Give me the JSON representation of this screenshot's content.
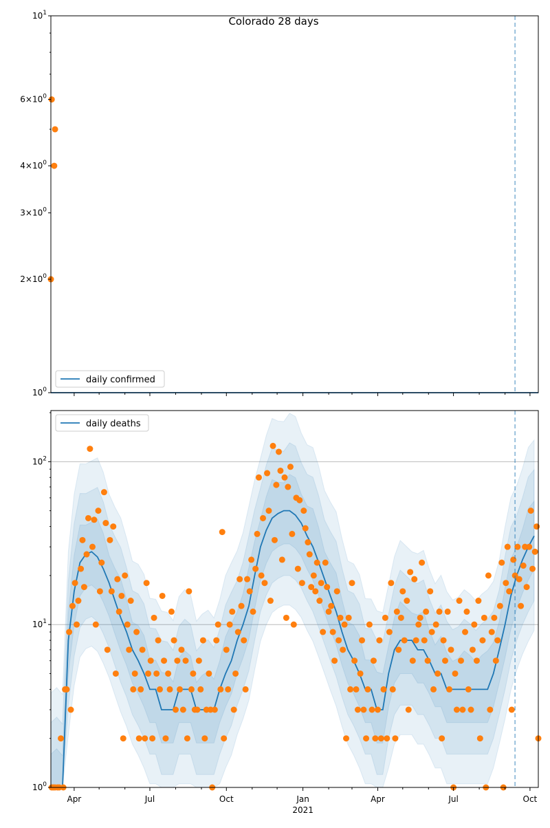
{
  "chart_data": [
    {
      "type": "scatter",
      "panel": "top",
      "title": "Colorado 28 days",
      "yscale": "log",
      "ylim": [
        1,
        10
      ],
      "x_start": "2020-03-04",
      "x_end": "2021-10-11",
      "legend": {
        "label": "daily confirmed",
        "placement": "bottom-left"
      },
      "line_value": 1,
      "observed": [
        {
          "date": "2020-03-04",
          "value": 2
        },
        {
          "date": "2020-03-05",
          "value": 6
        },
        {
          "date": "2020-03-08",
          "value": 4
        },
        {
          "date": "2020-03-09",
          "value": 5
        }
      ],
      "yticks": [
        {
          "value": 10,
          "mant": "",
          "exp": "1"
        },
        {
          "value": 6,
          "mant": "6",
          "exp": "0"
        },
        {
          "value": 4,
          "mant": "4",
          "exp": "0"
        },
        {
          "value": 3,
          "mant": "3",
          "exp": "0"
        },
        {
          "value": 2,
          "mant": "2",
          "exp": "0"
        },
        {
          "value": 1,
          "mant": "",
          "exp": "0"
        }
      ],
      "forecast_marker": "2021-09-13"
    },
    {
      "type": "line",
      "panel": "bottom",
      "yscale": "log",
      "ylim": [
        1,
        206
      ],
      "grid": true,
      "legend": {
        "label": "daily deaths",
        "placement": "top-left"
      },
      "x_start": "2020-03-04",
      "x_end": "2021-10-11",
      "median_interval_days": 7,
      "median": [
        1,
        1,
        1,
        8,
        16,
        24,
        27,
        28,
        26,
        22,
        18,
        14,
        11,
        9,
        7,
        6,
        5,
        4,
        4,
        3,
        3,
        3,
        4,
        4,
        4,
        3,
        3,
        3,
        3,
        4,
        5,
        6,
        8,
        10,
        13,
        20,
        30,
        38,
        45,
        48,
        50,
        50,
        47,
        42,
        35,
        30,
        24,
        19,
        15,
        12,
        9,
        7,
        6,
        5,
        4,
        4,
        3,
        3,
        5,
        7,
        8,
        8,
        8,
        7,
        7,
        6,
        5,
        5,
        4,
        4,
        4,
        4,
        4,
        4,
        4,
        4,
        5,
        7,
        10,
        15,
        20,
        25,
        30,
        35
      ],
      "band_factors": [
        1.6,
        2.5,
        3.8
      ],
      "observed_offsets_days": [
        1,
        3,
        5
      ],
      "observed_weekly": [
        [
          1,
          1,
          1
        ],
        [
          1,
          1,
          2
        ],
        [
          1,
          4,
          4
        ],
        [
          9,
          3,
          13
        ],
        [
          18,
          10,
          14
        ],
        [
          22,
          33,
          17
        ],
        [
          27,
          45,
          120
        ],
        [
          30,
          44,
          10
        ],
        [
          50,
          16,
          24
        ],
        [
          65,
          42,
          7
        ],
        [
          33,
          16,
          40
        ],
        [
          5,
          19,
          12
        ],
        [
          15,
          2,
          20
        ],
        [
          10,
          7,
          14
        ],
        [
          4,
          5,
          9
        ],
        [
          2,
          4,
          7
        ],
        [
          2,
          18,
          5
        ],
        [
          6,
          2,
          11
        ],
        [
          5,
          8,
          4
        ],
        [
          15,
          6,
          2
        ],
        [
          5,
          4,
          12
        ],
        [
          8,
          3,
          6
        ],
        [
          4,
          7,
          3
        ],
        [
          6,
          2,
          16
        ],
        [
          4,
          5,
          3
        ],
        [
          3,
          6,
          4
        ],
        [
          8,
          2,
          3
        ],
        [
          5,
          3,
          1
        ],
        [
          3,
          8,
          10
        ],
        [
          4,
          37,
          2
        ],
        [
          7,
          4,
          10
        ],
        [
          12,
          3,
          5
        ],
        [
          9,
          19,
          13
        ],
        [
          8,
          4,
          19
        ],
        [
          16,
          25,
          12
        ],
        [
          22,
          36,
          80
        ],
        [
          20,
          45,
          18
        ],
        [
          85,
          50,
          14
        ],
        [
          125,
          33,
          72
        ],
        [
          115,
          88,
          25
        ],
        [
          80,
          11,
          70
        ],
        [
          93,
          36,
          10
        ],
        [
          60,
          22,
          58
        ],
        [
          18,
          50,
          39
        ],
        [
          32,
          27,
          17
        ],
        [
          20,
          16,
          24
        ],
        [
          14,
          18,
          9
        ],
        [
          24,
          17,
          12
        ],
        [
          13,
          9,
          6
        ],
        [
          16,
          8,
          11
        ],
        [
          7,
          10,
          2
        ],
        [
          11,
          4,
          18
        ],
        [
          6,
          4,
          3
        ],
        [
          5,
          8,
          3
        ],
        [
          2,
          4,
          10
        ],
        [
          3,
          6,
          2
        ],
        [
          3,
          8,
          2
        ],
        [
          4,
          11,
          2
        ],
        [
          9,
          18,
          4
        ],
        [
          2,
          12,
          7
        ],
        [
          11,
          16,
          8
        ],
        [
          14,
          3,
          21
        ],
        [
          6,
          19,
          8
        ],
        [
          10,
          11,
          24
        ],
        [
          8,
          12,
          6
        ],
        [
          16,
          9,
          4
        ],
        [
          10,
          5,
          12
        ],
        [
          2,
          8,
          6
        ],
        [
          12,
          4,
          7
        ],
        [
          1,
          5,
          3
        ],
        [
          14,
          6,
          3
        ],
        [
          9,
          12,
          4
        ],
        [
          3,
          7,
          10
        ],
        [
          6,
          14,
          2
        ],
        [
          8,
          11,
          1
        ],
        [
          20,
          3,
          9
        ],
        [
          11,
          6,
          8
        ],
        [
          13,
          24,
          1
        ],
        [
          18,
          30,
          16
        ],
        [
          3,
          25,
          20
        ],
        [
          30,
          19,
          13
        ],
        [
          23,
          30,
          17
        ],
        [
          30,
          50,
          22
        ],
        [
          28,
          40,
          2
        ]
      ],
      "yticks": [
        {
          "value": 1,
          "mant": "",
          "exp": "0"
        },
        {
          "value": 10,
          "mant": "",
          "exp": "1"
        },
        {
          "value": 100,
          "mant": "",
          "exp": "2"
        }
      ],
      "xticks": [
        {
          "date": "2020-04-01",
          "label": "Apr"
        },
        {
          "date": "2020-07-01",
          "label": "Jul"
        },
        {
          "date": "2020-10-01",
          "label": "Oct"
        },
        {
          "date": "2021-01-01",
          "label": "Jan",
          "sublabel": "2021"
        },
        {
          "date": "2021-04-01",
          "label": "Apr"
        },
        {
          "date": "2021-07-01",
          "label": "Jul"
        },
        {
          "date": "2021-10-01",
          "label": "Oct"
        }
      ],
      "forecast_marker": "2021-09-13",
      "colors": {
        "line": "#1f77b4",
        "points": "#ff7f0e",
        "band": "#1f77b4",
        "grid": "#b0b0b0"
      }
    }
  ]
}
